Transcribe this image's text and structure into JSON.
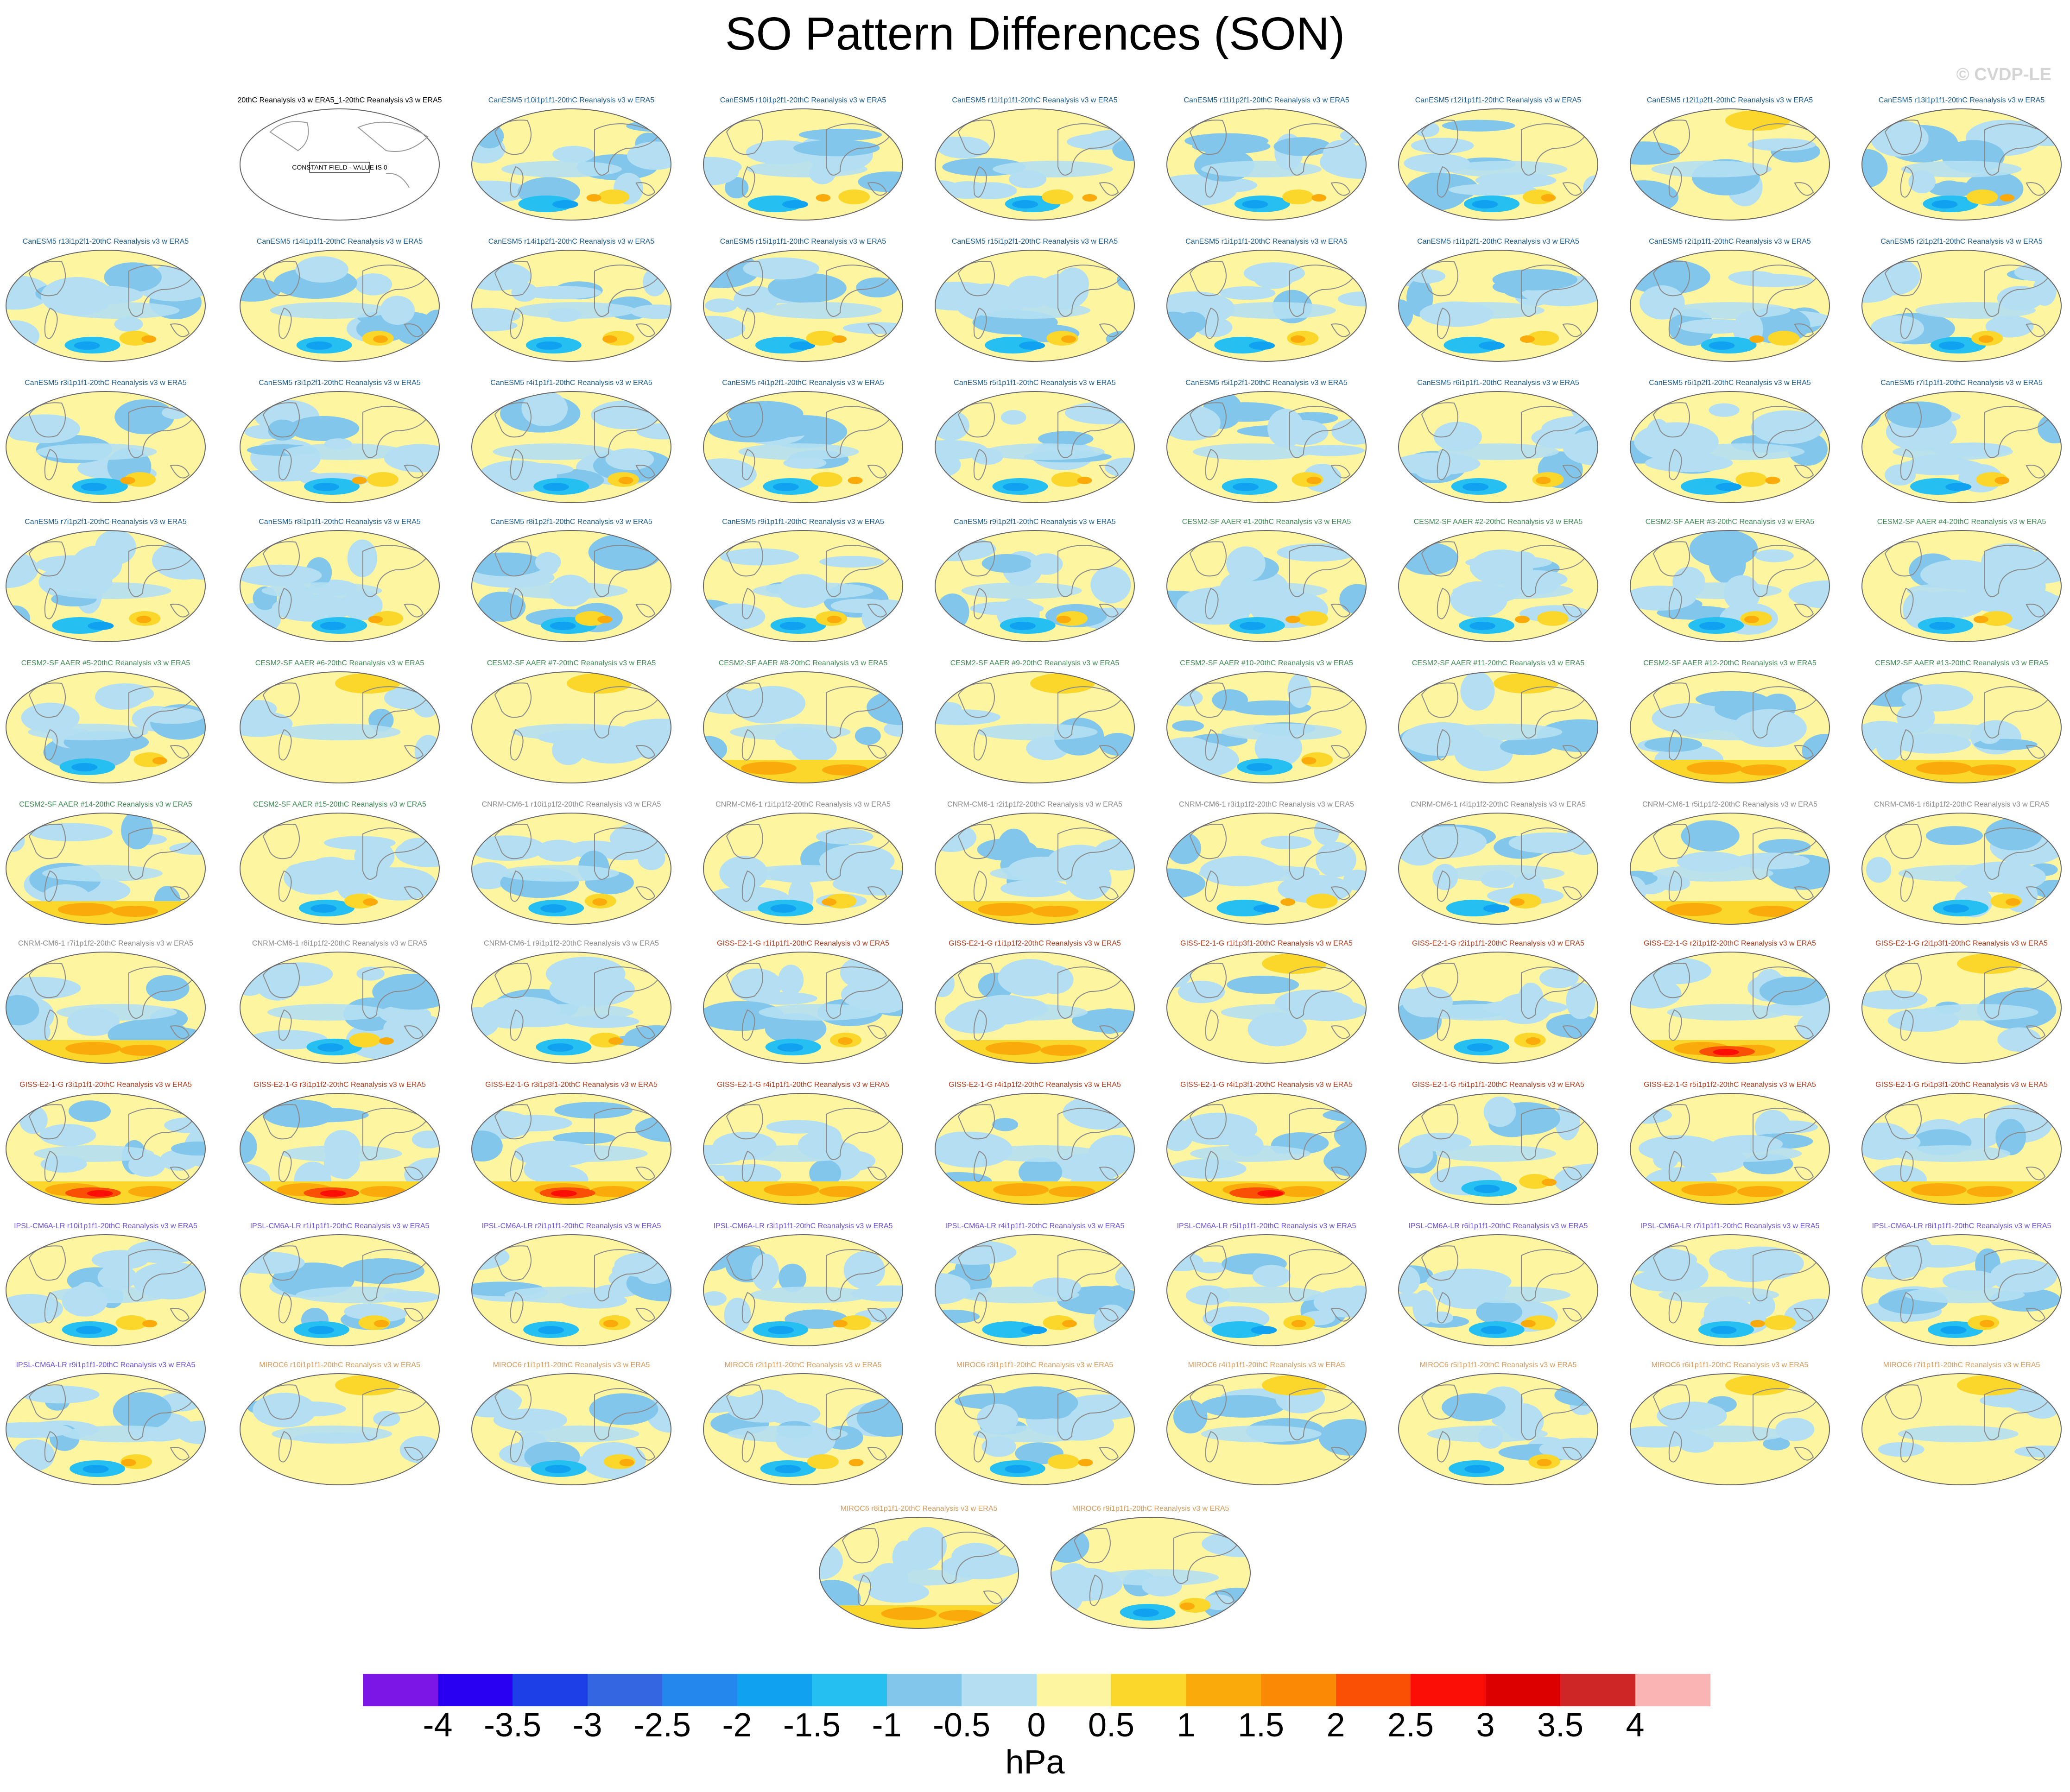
{
  "title": "SO Pattern Differences (SON)",
  "credit": "© CVDP-LE",
  "units": "hPa",
  "colors": {
    "canesm": "#1a5a8c",
    "cesm": "#3f8a54",
    "cnrm": "#8a8a8a",
    "giss": "#b23a1a",
    "ipsl": "#6a4fd8",
    "miroc": "#d49b5a",
    "reference": "#000000"
  },
  "chart_data": {
    "type": "heatmap",
    "title": "SO Pattern Differences (SON)",
    "colorbar": {
      "label": "hPa",
      "levels": [
        "-4",
        "-3.5",
        "-3",
        "-2.5",
        "-2",
        "-1.5",
        "-1",
        "-0.5",
        "0",
        "0.5",
        "1",
        "1.5",
        "2",
        "2.5",
        "3",
        "3.5",
        "4"
      ],
      "colors": [
        "#7b16e6",
        "#2a00f2",
        "#1c3fe8",
        "#3466e2",
        "#2288ee",
        "#10a2f0",
        "#26bff2",
        "#82c6ec",
        "#b4dff2",
        "#fef5a0",
        "#fad72a",
        "#faaa0a",
        "#fa8a06",
        "#fa5006",
        "#fa0e06",
        "#dc0000",
        "#ce2626",
        "#fab4b4"
      ]
    },
    "reference_panel": {
      "label": "20thC Reanalysis v3 w ERA5_1-20thC Reanalysis v3 w ERA5",
      "note": "CONSTANT FIELD - VALUE IS 0"
    },
    "panels": [
      {
        "label": "CanESM5 r10i1p1f1-20thC Reanalysis v3 w ERA5",
        "group": "canesm",
        "pattern": "ssouth"
      },
      {
        "label": "CanESM5 r10i1p2f1-20thC Reanalysis v3 w ERA5",
        "group": "canesm",
        "pattern": "ssouth"
      },
      {
        "label": "CanESM5 r11i1p1f1-20thC Reanalysis v3 w ERA5",
        "group": "canesm",
        "pattern": "mixed"
      },
      {
        "label": "CanESM5 r11i1p2f1-20thC Reanalysis v3 w ERA5",
        "group": "canesm",
        "pattern": "mixed"
      },
      {
        "label": "CanESM5 r12i1p1f1-20thC Reanalysis v3 w ERA5",
        "group": "canesm",
        "pattern": "bsouth"
      },
      {
        "label": "CanESM5 r12i1p2f1-20thC Reanalysis v3 w ERA5",
        "group": "canesm",
        "pattern": "yellow"
      },
      {
        "label": "CanESM5 r13i1p1f1-20thC Reanalysis v3 w ERA5",
        "group": "canesm",
        "pattern": "mixed"
      },
      {
        "label": "CanESM5 r13i1p2f1-20thC Reanalysis v3 w ERA5",
        "group": "canesm",
        "pattern": "mixed"
      },
      {
        "label": "CanESM5 r14i1p1f1-20thC Reanalysis v3 w ERA5",
        "group": "canesm",
        "pattern": "bsouth"
      },
      {
        "label": "CanESM5 r14i1p2f1-20thC Reanalysis v3 w ERA5",
        "group": "canesm",
        "pattern": "bsouth"
      },
      {
        "label": "CanESM5 r15i1p1f1-20thC Reanalysis v3 w ERA5",
        "group": "canesm",
        "pattern": "bsouth"
      },
      {
        "label": "CanESM5 r15i1p2f1-20thC Reanalysis v3 w ERA5",
        "group": "canesm",
        "pattern": "bsouth"
      },
      {
        "label": "CanESM5 r1i1p1f1-20thC Reanalysis v3 w ERA5",
        "group": "canesm",
        "pattern": "bsouth"
      },
      {
        "label": "CanESM5 r1i1p2f1-20thC Reanalysis v3 w ERA5",
        "group": "canesm",
        "pattern": "bsouth"
      },
      {
        "label": "CanESM5 r2i1p1f1-20thC Reanalysis v3 w ERA5",
        "group": "canesm",
        "pattern": "mixed"
      },
      {
        "label": "CanESM5 r2i1p2f1-20thC Reanalysis v3 w ERA5",
        "group": "canesm",
        "pattern": "ssouth"
      },
      {
        "label": "CanESM5 r3i1p1f1-20thC Reanalysis v3 w ERA5",
        "group": "canesm",
        "pattern": "bsouth"
      },
      {
        "label": "CanESM5 r3i1p2f1-20thC Reanalysis v3 w ERA5",
        "group": "canesm",
        "pattern": "mixed"
      },
      {
        "label": "CanESM5 r4i1p1f1-20thC Reanalysis v3 w ERA5",
        "group": "canesm",
        "pattern": "bsouth"
      },
      {
        "label": "CanESM5 r4i1p2f1-20thC Reanalysis v3 w ERA5",
        "group": "canesm",
        "pattern": "bsouth"
      },
      {
        "label": "CanESM5 r5i1p1f1-20thC Reanalysis v3 w ERA5",
        "group": "canesm",
        "pattern": "mixed"
      },
      {
        "label": "CanESM5 r5i1p2f1-20thC Reanalysis v3 w ERA5",
        "group": "canesm",
        "pattern": "mixed"
      },
      {
        "label": "CanESM5 r6i1p1f1-20thC Reanalysis v3 w ERA5",
        "group": "canesm",
        "pattern": "bsouth"
      },
      {
        "label": "CanESM5 r6i1p2f1-20thC Reanalysis v3 w ERA5",
        "group": "canesm",
        "pattern": "mixed"
      },
      {
        "label": "CanESM5 r7i1p1f1-20thC Reanalysis v3 w ERA5",
        "group": "canesm",
        "pattern": "ssouth"
      },
      {
        "label": "CanESM5 r7i1p2f1-20thC Reanalysis v3 w ERA5",
        "group": "canesm",
        "pattern": "mixed"
      },
      {
        "label": "CanESM5 r8i1p1f1-20thC Reanalysis v3 w ERA5",
        "group": "canesm",
        "pattern": "bsouth"
      },
      {
        "label": "CanESM5 r8i1p2f1-20thC Reanalysis v3 w ERA5",
        "group": "canesm",
        "pattern": "ssouth"
      },
      {
        "label": "CanESM5 r9i1p1f1-20thC Reanalysis v3 w ERA5",
        "group": "canesm",
        "pattern": "mixed"
      },
      {
        "label": "CanESM5 r9i1p2f1-20thC Reanalysis v3 w ERA5",
        "group": "canesm",
        "pattern": "mixed"
      },
      {
        "label": "CESM2-SF AAER #1-20thC Reanalysis v3 w ERA5",
        "group": "cesm",
        "pattern": "mixed"
      },
      {
        "label": "CESM2-SF AAER #2-20thC Reanalysis v3 w ERA5",
        "group": "cesm",
        "pattern": "mixed"
      },
      {
        "label": "CESM2-SF AAER #3-20thC Reanalysis v3 w ERA5",
        "group": "cesm",
        "pattern": "mixed"
      },
      {
        "label": "CESM2-SF AAER #4-20thC Reanalysis v3 w ERA5",
        "group": "cesm",
        "pattern": "mixed"
      },
      {
        "label": "CESM2-SF AAER #5-20thC Reanalysis v3 w ERA5",
        "group": "cesm",
        "pattern": "mixed"
      },
      {
        "label": "CESM2-SF AAER #6-20thC Reanalysis v3 w ERA5",
        "group": "cesm",
        "pattern": "yellow"
      },
      {
        "label": "CESM2-SF AAER #7-20thC Reanalysis v3 w ERA5",
        "group": "cesm",
        "pattern": "yellow"
      },
      {
        "label": "CESM2-SF AAER #8-20thC Reanalysis v3 w ERA5",
        "group": "cesm",
        "pattern": "ysouth"
      },
      {
        "label": "CESM2-SF AAER #9-20thC Reanalysis v3 w ERA5",
        "group": "cesm",
        "pattern": "yellow"
      },
      {
        "label": "CESM2-SF AAER #10-20thC Reanalysis v3 w ERA5",
        "group": "cesm",
        "pattern": "mixed"
      },
      {
        "label": "CESM2-SF AAER #11-20thC Reanalysis v3 w ERA5",
        "group": "cesm",
        "pattern": "yellow"
      },
      {
        "label": "CESM2-SF AAER #12-20thC Reanalysis v3 w ERA5",
        "group": "cesm",
        "pattern": "ysouth"
      },
      {
        "label": "CESM2-SF AAER #13-20thC Reanalysis v3 w ERA5",
        "group": "cesm",
        "pattern": "ysouth"
      },
      {
        "label": "CESM2-SF AAER #14-20thC Reanalysis v3 w ERA5",
        "group": "cesm",
        "pattern": "ysouth"
      },
      {
        "label": "CESM2-SF AAER #15-20thC Reanalysis v3 w ERA5",
        "group": "cesm",
        "pattern": "mixed"
      },
      {
        "label": "CNRM-CM6-1 r10i1p1f2-20thC Reanalysis v3 w ERA5",
        "group": "cnrm",
        "pattern": "mixed"
      },
      {
        "label": "CNRM-CM6-1 r1i1p1f2-20thC Reanalysis v3 w ERA5",
        "group": "cnrm",
        "pattern": "ssouth"
      },
      {
        "label": "CNRM-CM6-1 r2i1p1f2-20thC Reanalysis v3 w ERA5",
        "group": "cnrm",
        "pattern": "ysouth"
      },
      {
        "label": "CNRM-CM6-1 r3i1p1f2-20thC Reanalysis v3 w ERA5",
        "group": "cnrm",
        "pattern": "ssouth"
      },
      {
        "label": "CNRM-CM6-1 r4i1p1f2-20thC Reanalysis v3 w ERA5",
        "group": "cnrm",
        "pattern": "mixed"
      },
      {
        "label": "CNRM-CM6-1 r5i1p1f2-20thC Reanalysis v3 w ERA5",
        "group": "cnrm",
        "pattern": "ysouth"
      },
      {
        "label": "CNRM-CM6-1 r6i1p1f2-20thC Reanalysis v3 w ERA5",
        "group": "cnrm",
        "pattern": "ssouth"
      },
      {
        "label": "CNRM-CM6-1 r7i1p1f2-20thC Reanalysis v3 w ERA5",
        "group": "cnrm",
        "pattern": "ysouth"
      },
      {
        "label": "CNRM-CM6-1 r8i1p1f2-20thC Reanalysis v3 w ERA5",
        "group": "cnrm",
        "pattern": "mixed"
      },
      {
        "label": "CNRM-CM6-1 r9i1p1f2-20thC Reanalysis v3 w ERA5",
        "group": "cnrm",
        "pattern": "mixed"
      },
      {
        "label": "GISS-E2-1-G r1i1p1f1-20thC Reanalysis v3 w ERA5",
        "group": "giss",
        "pattern": "bsouth"
      },
      {
        "label": "GISS-E2-1-G r1i1p1f2-20thC Reanalysis v3 w ERA5",
        "group": "giss",
        "pattern": "ysouth"
      },
      {
        "label": "GISS-E2-1-G r1i1p3f1-20thC Reanalysis v3 w ERA5",
        "group": "giss",
        "pattern": "yellow"
      },
      {
        "label": "GISS-E2-1-G r2i1p1f1-20thC Reanalysis v3 w ERA5",
        "group": "giss",
        "pattern": "mixed"
      },
      {
        "label": "GISS-E2-1-G r2i1p1f2-20thC Reanalysis v3 w ERA5",
        "group": "giss",
        "pattern": "hsouth"
      },
      {
        "label": "GISS-E2-1-G r2i1p3f1-20thC Reanalysis v3 w ERA5",
        "group": "giss",
        "pattern": "yellow"
      },
      {
        "label": "GISS-E2-1-G r3i1p1f1-20thC Reanalysis v3 w ERA5",
        "group": "giss",
        "pattern": "hsouth"
      },
      {
        "label": "GISS-E2-1-G r3i1p1f2-20thC Reanalysis v3 w ERA5",
        "group": "giss",
        "pattern": "hsouth"
      },
      {
        "label": "GISS-E2-1-G r3i1p3f1-20thC Reanalysis v3 w ERA5",
        "group": "giss",
        "pattern": "hsouth"
      },
      {
        "label": "GISS-E2-1-G r4i1p1f1-20thC Reanalysis v3 w ERA5",
        "group": "giss",
        "pattern": "ysouth"
      },
      {
        "label": "GISS-E2-1-G r4i1p1f2-20thC Reanalysis v3 w ERA5",
        "group": "giss",
        "pattern": "ysouth"
      },
      {
        "label": "GISS-E2-1-G r4i1p3f1-20thC Reanalysis v3 w ERA5",
        "group": "giss",
        "pattern": "hsouth"
      },
      {
        "label": "GISS-E2-1-G r5i1p1f1-20thC Reanalysis v3 w ERA5",
        "group": "giss",
        "pattern": "mixed"
      },
      {
        "label": "GISS-E2-1-G r5i1p1f2-20thC Reanalysis v3 w ERA5",
        "group": "giss",
        "pattern": "ysouth"
      },
      {
        "label": "GISS-E2-1-G r5i1p3f1-20thC Reanalysis v3 w ERA5",
        "group": "giss",
        "pattern": "ysouth"
      },
      {
        "label": "IPSL-CM6A-LR r10i1p1f1-20thC Reanalysis v3 w ERA5",
        "group": "ipsl",
        "pattern": "mixed"
      },
      {
        "label": "IPSL-CM6A-LR r1i1p1f1-20thC Reanalysis v3 w ERA5",
        "group": "ipsl",
        "pattern": "ssouth"
      },
      {
        "label": "IPSL-CM6A-LR r2i1p1f1-20thC Reanalysis v3 w ERA5",
        "group": "ipsl",
        "pattern": "mixed"
      },
      {
        "label": "IPSL-CM6A-LR r3i1p1f1-20thC Reanalysis v3 w ERA5",
        "group": "ipsl",
        "pattern": "ssouth"
      },
      {
        "label": "IPSL-CM6A-LR r4i1p1f1-20thC Reanalysis v3 w ERA5",
        "group": "ipsl",
        "pattern": "ssouth"
      },
      {
        "label": "IPSL-CM6A-LR r5i1p1f1-20thC Reanalysis v3 w ERA5",
        "group": "ipsl",
        "pattern": "mixed"
      },
      {
        "label": "IPSL-CM6A-LR r6i1p1f1-20thC Reanalysis v3 w ERA5",
        "group": "ipsl",
        "pattern": "mixed"
      },
      {
        "label": "IPSL-CM6A-LR r7i1p1f1-20thC Reanalysis v3 w ERA5",
        "group": "ipsl",
        "pattern": "ssouth"
      },
      {
        "label": "IPSL-CM6A-LR r8i1p1f1-20thC Reanalysis v3 w ERA5",
        "group": "ipsl",
        "pattern": "mixed"
      },
      {
        "label": "IPSL-CM6A-LR r9i1p1f1-20thC Reanalysis v3 w ERA5",
        "group": "ipsl",
        "pattern": "bsouth"
      },
      {
        "label": "MIROC6 r10i1p1f1-20thC Reanalysis v3 w ERA5",
        "group": "miroc",
        "pattern": "yellow"
      },
      {
        "label": "MIROC6 r1i1p1f1-20thC Reanalysis v3 w ERA5",
        "group": "miroc",
        "pattern": "mixed"
      },
      {
        "label": "MIROC6 r2i1p1f1-20thC Reanalysis v3 w ERA5",
        "group": "miroc",
        "pattern": "mixed"
      },
      {
        "label": "MIROC6 r3i1p1f1-20thC Reanalysis v3 w ERA5",
        "group": "miroc",
        "pattern": "bsouth"
      },
      {
        "label": "MIROC6 r4i1p1f1-20thC Reanalysis v3 w ERA5",
        "group": "miroc",
        "pattern": "yellow"
      },
      {
        "label": "MIROC6 r5i1p1f1-20thC Reanalysis v3 w ERA5",
        "group": "miroc",
        "pattern": "mixed"
      },
      {
        "label": "MIROC6 r6i1p1f1-20thC Reanalysis v3 w ERA5",
        "group": "miroc",
        "pattern": "yellow"
      },
      {
        "label": "MIROC6 r7i1p1f1-20thC Reanalysis v3 w ERA5",
        "group": "miroc",
        "pattern": "yellow"
      },
      {
        "label": "MIROC6 r8i1p1f1-20thC Reanalysis v3 w ERA5",
        "group": "miroc",
        "pattern": "ysouth"
      },
      {
        "label": "MIROC6 r9i1p1f1-20thC Reanalysis v3 w ERA5",
        "group": "miroc",
        "pattern": "mixed"
      }
    ]
  }
}
